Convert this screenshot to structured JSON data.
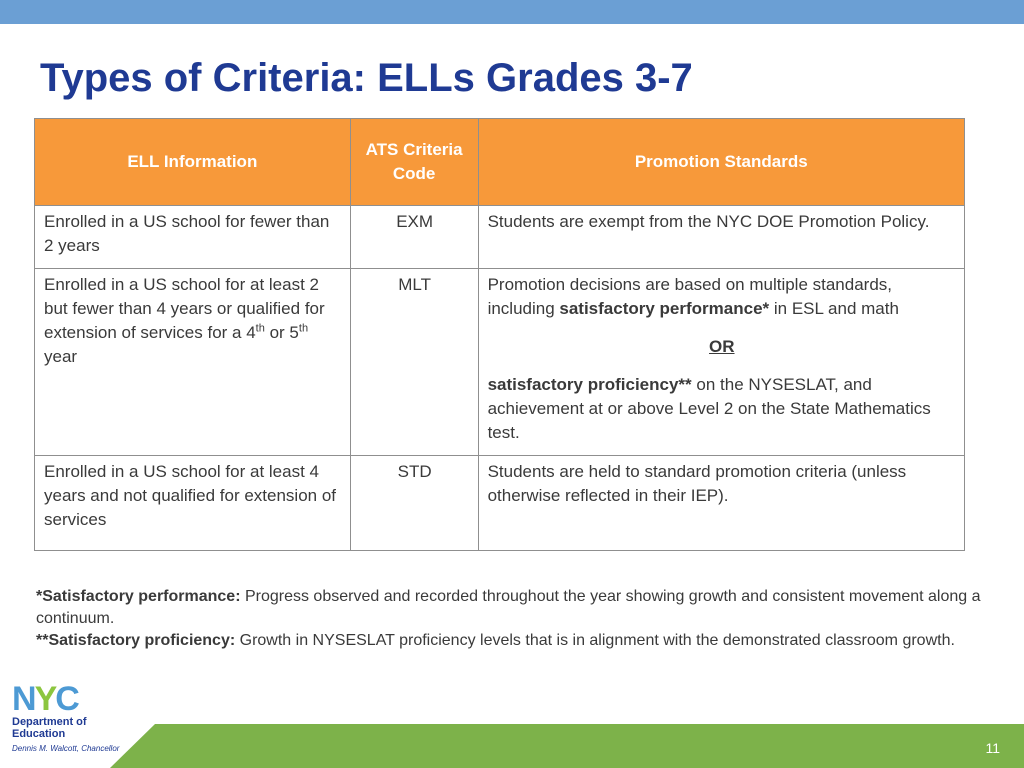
{
  "slide": {
    "title": "Types of Criteria: ELLs Grades 3-7",
    "page_number": "11"
  },
  "table": {
    "headers": {
      "ell_info": "ELL Information",
      "ats_code": "ATS Criteria Code",
      "standards": "Promotion Standards"
    },
    "rows": [
      {
        "info": "Enrolled in a US school for fewer than 2 years",
        "code": "EXM",
        "standards": "Students are exempt from the NYC DOE Promotion Policy."
      },
      {
        "info_prefix": "Enrolled in a US school for at least 2 but fewer than 4 years or qualified for extension of services for a 4",
        "info_sup1": "th",
        "info_mid": " or 5",
        "info_sup2": "th",
        "info_suffix": " year",
        "code": "MLT",
        "std_p1_pre": "Promotion decisions are based on multiple standards, including ",
        "std_p1_bold": "satisfactory performance*",
        "std_p1_post": " in ESL and math",
        "std_or": "OR",
        "std_p2_bold": "satisfactory proficiency**",
        "std_p2_post": " on the NYSESLAT, and achievement at or above Level 2 on the State Mathematics test."
      },
      {
        "info": "Enrolled in a US school for at least 4 years and not qualified for extension of services",
        "code": "STD",
        "standards": "Students are held to standard promotion criteria (unless otherwise reflected in their IEP)."
      }
    ]
  },
  "footnotes": [
    {
      "term": "*Satisfactory performance:",
      "text": " Progress observed and recorded throughout the year showing growth and consistent movement along a continuum."
    },
    {
      "term": "**Satisfactory proficiency:",
      "text": " Growth in NYSESLAT proficiency levels that is in alignment with the demonstrated classroom growth."
    }
  ],
  "logo": {
    "letters": [
      "N",
      "Y",
      "C"
    ],
    "dept_line1": "Department of",
    "dept_line2": "Education",
    "chancellor": "Dennis M. Walcott, Chancellor"
  },
  "colors": {
    "top_bar": "#6b9fd4",
    "header_orange": "#f7993a",
    "title_blue": "#1f3a93",
    "bottom_green": "#7db24a"
  }
}
